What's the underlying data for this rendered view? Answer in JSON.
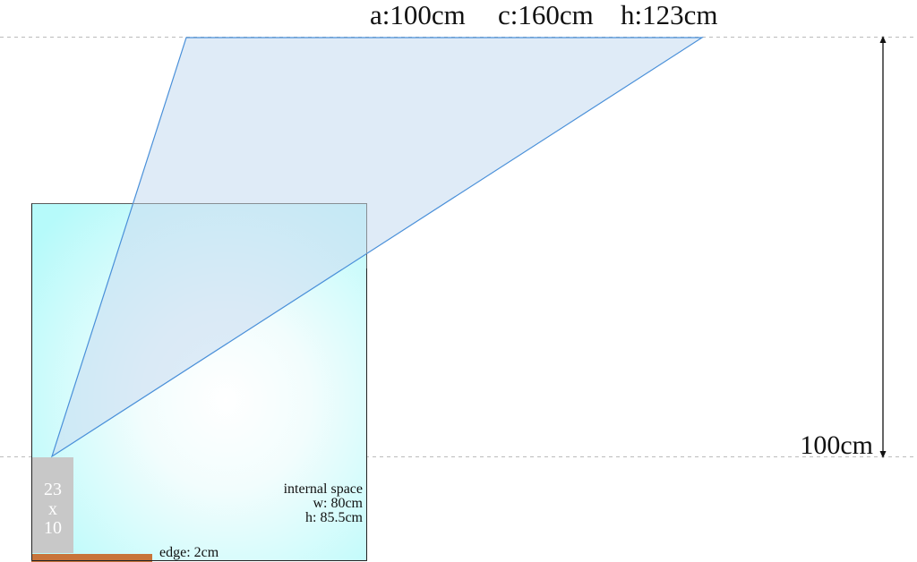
{
  "top_dimensions": {
    "a": "a:100cm",
    "c": "c:160cm",
    "h": "h:123cm"
  },
  "height_measure": "100cm",
  "base_block": {
    "line1": "23",
    "line2": "x",
    "line3": "10"
  },
  "internal_space": {
    "title": "internal  space",
    "width": "w:  80cm",
    "height": "h:  85.5cm"
  },
  "edge_label": "edge:  2cm",
  "colors": {
    "box_fill_center": "#ffffff",
    "box_fill_edge": "#b8fbfb",
    "triangle_fill": "#dceaf6",
    "triangle_stroke": "#4a90d9",
    "edge_strip": "#c8743a",
    "base_block": "#c8c8c8",
    "dashed_line": "#bbbbbb"
  }
}
